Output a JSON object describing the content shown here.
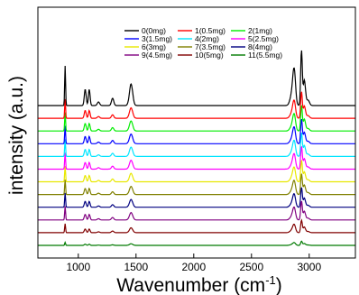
{
  "chart_data": {
    "type": "line",
    "title": "",
    "xlabel": "Wavenumber (cm",
    "xlabel_sup": "-1",
    "xlabel_close": ")",
    "ylabel": "intensity (a.u.)",
    "xlim": [
      650,
      3400
    ],
    "x_ticks": [
      1000,
      1500,
      2000,
      2500,
      3000
    ],
    "grid": false,
    "legend_position": "top-center",
    "y_ticks_shown": false,
    "peaks_cm1": [
      886,
      1060,
      1095,
      1175,
      1297,
      1457,
      2870,
      2933,
      2958
    ],
    "series": [
      {
        "name": "0(0mg)",
        "color": "#000000"
      },
      {
        "name": "1(0.5mg)",
        "color": "#ff0000"
      },
      {
        "name": "2(1mg)",
        "color": "#00ee00"
      },
      {
        "name": "3(1.5mg)",
        "color": "#0000ff"
      },
      {
        "name": "4(2mg)",
        "color": "#00e5ff"
      },
      {
        "name": "5(2.5mg)",
        "color": "#ff00ff"
      },
      {
        "name": "6(3mg)",
        "color": "#e8e800"
      },
      {
        "name": "7(3.5mg)",
        "color": "#808000"
      },
      {
        "name": "8(4mg)",
        "color": "#000080"
      },
      {
        "name": "9(4.5mg)",
        "color": "#800080"
      },
      {
        "name": "10(5mg)",
        "color": "#800000"
      },
      {
        "name": "11(5.5mg)",
        "color": "#007a00"
      }
    ]
  }
}
